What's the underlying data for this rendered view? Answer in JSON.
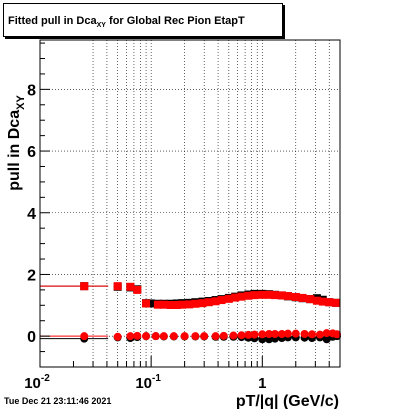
{
  "chart_data": {
    "type": "scatter",
    "title_main": "Fitted pull in Dca",
    "title_sub": "XY",
    "title_tail": " for Global Rec Pion EtapT",
    "xlabel": "pT/|q| (GeV/c)",
    "ylabel_main": "pull in Dca",
    "ylabel_sub": "XY",
    "xscale": "log",
    "xlim": [
      0.01,
      5
    ],
    "ylim": [
      -1,
      9.6
    ],
    "grid": true,
    "x_ticks": [
      {
        "value": 0.01,
        "label": "10",
        "sup": "-2"
      },
      {
        "value": 0.1,
        "label": "10",
        "sup": "-1"
      },
      {
        "value": 1,
        "label": "1",
        "sup": ""
      }
    ],
    "y_ticks": [
      {
        "value": 0,
        "label": "0"
      },
      {
        "value": 2,
        "label": "2"
      },
      {
        "value": 4,
        "label": "4"
      },
      {
        "value": 6,
        "label": "6"
      },
      {
        "value": 8,
        "label": "8"
      }
    ],
    "series": [
      {
        "color": "#000000",
        "points": [
          [
            0.025,
            1.62
          ],
          [
            0.05,
            1.6
          ],
          [
            0.065,
            1.58
          ],
          [
            0.075,
            1.52
          ],
          [
            0.09,
            1.07
          ],
          [
            0.1,
            1.06
          ],
          [
            0.115,
            1.05
          ],
          [
            0.13,
            1.05
          ],
          [
            0.15,
            1.05
          ],
          [
            0.17,
            1.06
          ],
          [
            0.19,
            1.07
          ],
          [
            0.22,
            1.08
          ],
          [
            0.25,
            1.1
          ],
          [
            0.29,
            1.12
          ],
          [
            0.33,
            1.14
          ],
          [
            0.38,
            1.17
          ],
          [
            0.43,
            1.2
          ],
          [
            0.5,
            1.24
          ],
          [
            0.57,
            1.28
          ],
          [
            0.65,
            1.32
          ],
          [
            0.75,
            1.35
          ],
          [
            0.85,
            1.37
          ],
          [
            1.0,
            1.37
          ],
          [
            1.15,
            1.36
          ],
          [
            1.3,
            1.34
          ],
          [
            1.5,
            1.32
          ],
          [
            1.7,
            1.29
          ],
          [
            2.0,
            1.26
          ],
          [
            2.3,
            1.23
          ],
          [
            2.7,
            1.2
          ],
          [
            3.1,
            1.23
          ],
          [
            3.5,
            1.18
          ],
          [
            4.0,
            1.1
          ],
          [
            4.6,
            1.08
          ],
          [
            0.025,
            -0.08
          ],
          [
            0.05,
            -0.04
          ],
          [
            0.065,
            -0.06
          ],
          [
            0.075,
            -0.03
          ],
          [
            0.09,
            0.0
          ],
          [
            0.11,
            0.0
          ],
          [
            0.13,
            -0.01
          ],
          [
            0.16,
            -0.01
          ],
          [
            0.2,
            -0.01
          ],
          [
            0.25,
            -0.01
          ],
          [
            0.3,
            -0.01
          ],
          [
            0.38,
            -0.02
          ],
          [
            0.45,
            -0.02
          ],
          [
            0.55,
            -0.02
          ],
          [
            0.65,
            -0.03
          ],
          [
            0.75,
            -0.05
          ],
          [
            0.85,
            -0.07
          ],
          [
            1.0,
            -0.1
          ],
          [
            1.15,
            -0.1
          ],
          [
            1.3,
            -0.08
          ],
          [
            1.5,
            -0.06
          ],
          [
            1.7,
            -0.04
          ],
          [
            2.0,
            -0.04
          ],
          [
            2.4,
            -0.05
          ],
          [
            2.8,
            -0.06
          ],
          [
            3.3,
            -0.04
          ],
          [
            3.8,
            -0.1
          ],
          [
            4.3,
            -0.02
          ],
          [
            4.7,
            0.0
          ]
        ]
      },
      {
        "color": "#ff0000",
        "points": [
          [
            0.025,
            1.62
          ],
          [
            0.05,
            1.62
          ],
          [
            0.065,
            1.6
          ],
          [
            0.075,
            1.5
          ],
          [
            0.09,
            1.06
          ],
          [
            0.115,
            1.02
          ],
          [
            0.13,
            1.02
          ],
          [
            0.15,
            1.01
          ],
          [
            0.17,
            1.01
          ],
          [
            0.19,
            1.02
          ],
          [
            0.22,
            1.03
          ],
          [
            0.25,
            1.05
          ],
          [
            0.29,
            1.07
          ],
          [
            0.33,
            1.1
          ],
          [
            0.38,
            1.13
          ],
          [
            0.43,
            1.17
          ],
          [
            0.5,
            1.21
          ],
          [
            0.57,
            1.25
          ],
          [
            0.65,
            1.28
          ],
          [
            0.75,
            1.31
          ],
          [
            0.85,
            1.33
          ],
          [
            1.0,
            1.34
          ],
          [
            1.15,
            1.34
          ],
          [
            1.3,
            1.33
          ],
          [
            1.5,
            1.32
          ],
          [
            1.7,
            1.3
          ],
          [
            2.0,
            1.27
          ],
          [
            2.3,
            1.24
          ],
          [
            2.7,
            1.2
          ],
          [
            3.1,
            1.15
          ],
          [
            3.5,
            1.12
          ],
          [
            4.0,
            1.1
          ],
          [
            4.6,
            1.08
          ],
          [
            0.025,
            0.0
          ],
          [
            0.05,
            -0.02
          ],
          [
            0.065,
            0.0
          ],
          [
            0.075,
            0.01
          ],
          [
            0.09,
            0.0
          ],
          [
            0.11,
            0.0
          ],
          [
            0.13,
            0.0
          ],
          [
            0.16,
            0.0
          ],
          [
            0.2,
            0.0
          ],
          [
            0.25,
            0.0
          ],
          [
            0.3,
            0.0
          ],
          [
            0.38,
            0.0
          ],
          [
            0.45,
            0.01
          ],
          [
            0.55,
            0.02
          ],
          [
            0.65,
            0.03
          ],
          [
            0.75,
            0.04
          ],
          [
            0.85,
            0.05
          ],
          [
            1.0,
            0.06
          ],
          [
            1.15,
            0.07
          ],
          [
            1.3,
            0.07
          ],
          [
            1.5,
            0.07
          ],
          [
            1.7,
            0.08
          ],
          [
            2.0,
            0.08
          ],
          [
            2.4,
            0.07
          ],
          [
            2.8,
            0.06
          ],
          [
            3.3,
            0.05
          ],
          [
            3.8,
            0.1
          ],
          [
            4.3,
            0.09
          ],
          [
            4.7,
            0.06
          ]
        ]
      }
    ]
  },
  "footer": {
    "timestamp": "Tue Dec 21 23:11:46 2021"
  }
}
